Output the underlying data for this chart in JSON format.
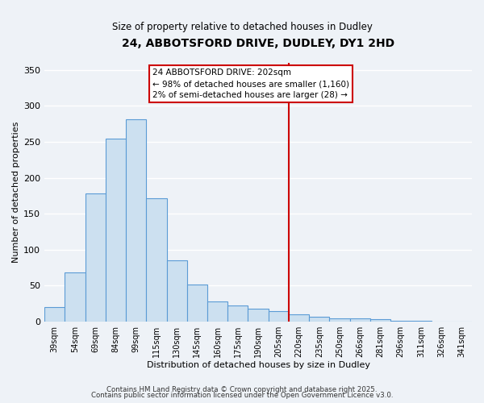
{
  "title": "24, ABBOTSFORD DRIVE, DUDLEY, DY1 2HD",
  "subtitle": "Size of property relative to detached houses in Dudley",
  "xlabel": "Distribution of detached houses by size in Dudley",
  "ylabel": "Number of detached properties",
  "bar_labels": [
    "39sqm",
    "54sqm",
    "69sqm",
    "84sqm",
    "99sqm",
    "115sqm",
    "130sqm",
    "145sqm",
    "160sqm",
    "175sqm",
    "190sqm",
    "205sqm",
    "220sqm",
    "235sqm",
    "250sqm",
    "266sqm",
    "281sqm",
    "296sqm",
    "311sqm",
    "326sqm",
    "341sqm"
  ],
  "bar_heights": [
    20,
    68,
    178,
    255,
    282,
    172,
    85,
    52,
    28,
    23,
    18,
    15,
    10,
    7,
    5,
    5,
    3,
    1,
    1,
    0,
    0
  ],
  "bar_color": "#cce0f0",
  "bar_edge_color": "#5b9bd5",
  "vline_x": 12.0,
  "vline_color": "#cc0000",
  "annotation_title": "24 ABBOTSFORD DRIVE: 202sqm",
  "annotation_line1": "← 98% of detached houses are smaller (1,160)",
  "annotation_line2": "2% of semi-detached houses are larger (28) →",
  "ylim": [
    0,
    360
  ],
  "yticks": [
    0,
    50,
    100,
    150,
    200,
    250,
    300,
    350
  ],
  "background_color": "#eef2f7",
  "grid_color": "#ffffff",
  "footer_line1": "Contains HM Land Registry data © Crown copyright and database right 2025.",
  "footer_line2": "Contains public sector information licensed under the Open Government Licence v3.0."
}
